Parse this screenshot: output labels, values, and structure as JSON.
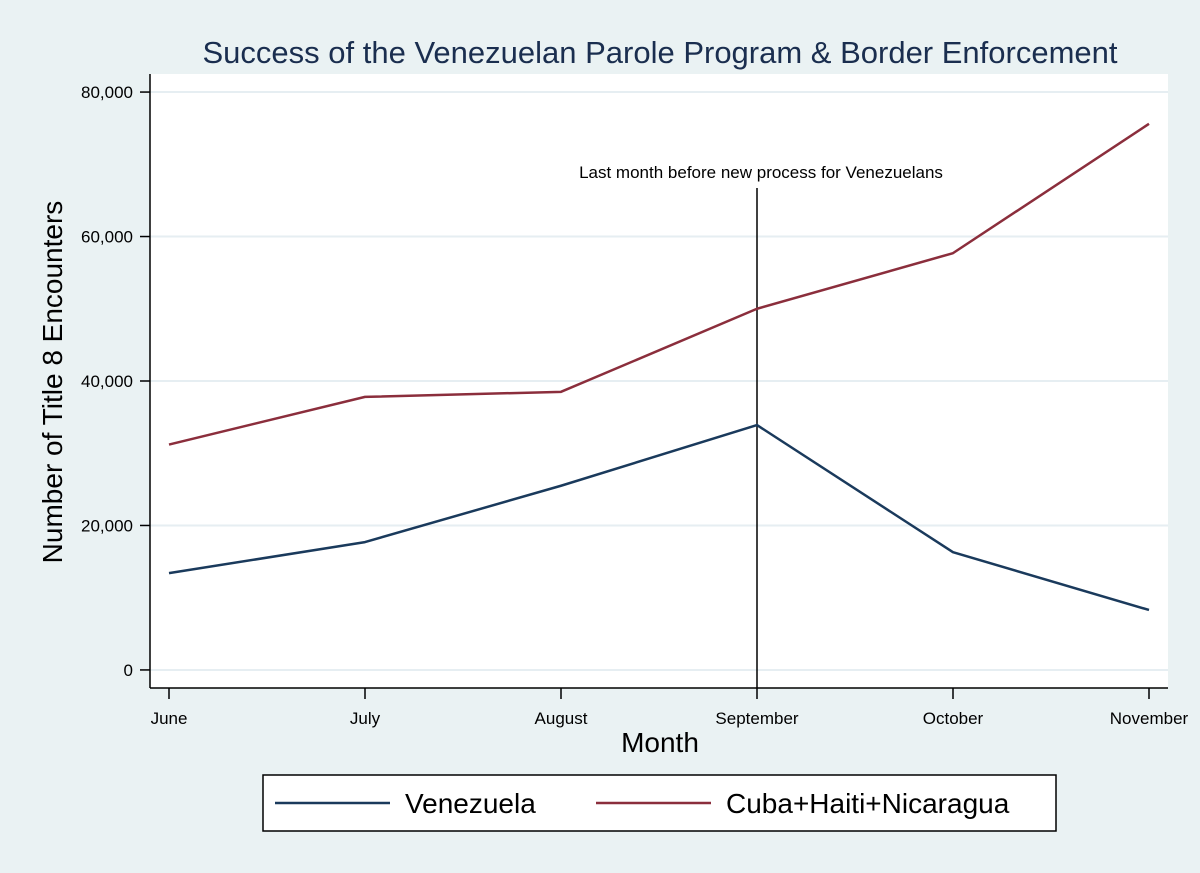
{
  "chart_data": {
    "type": "line",
    "title": "Success of the Venezuelan Parole Program & Border Enforcement",
    "xlabel": "Month",
    "ylabel": "Number of Title 8 Encounters",
    "categories": [
      "June",
      "July",
      "August",
      "September",
      "October",
      "November"
    ],
    "y_ticks": [
      0,
      20000,
      40000,
      60000,
      80000
    ],
    "y_tick_labels": [
      "0",
      "20,000",
      "40,000",
      "60,000",
      "80,000"
    ],
    "ylim": [
      -2500,
      82500
    ],
    "grid": true,
    "series": [
      {
        "name": "Venezuela",
        "color": "#1a3a5c",
        "values": [
          13400,
          17700,
          25500,
          33900,
          16300,
          8300
        ]
      },
      {
        "name": "Cuba+Haiti+Nicaragua",
        "color": "#8b2e3c",
        "values": [
          31200,
          37800,
          38500,
          50000,
          57700,
          75600
        ]
      }
    ],
    "annotation": {
      "text": "Last month before new process for Venezuelans",
      "x_category": "September"
    },
    "legend_position": "bottom"
  }
}
